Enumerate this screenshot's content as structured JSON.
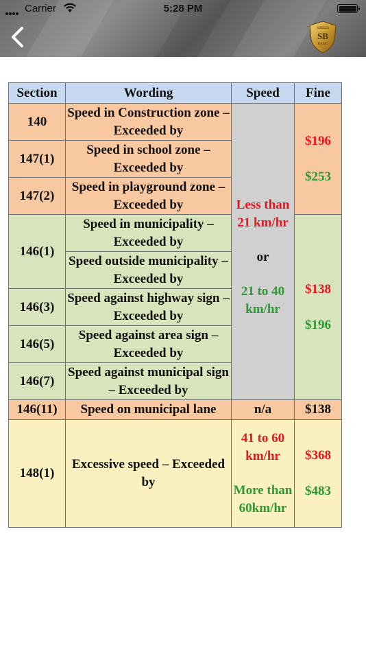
{
  "status_bar": {
    "carrier": "Carrier",
    "time": "5:28 PM"
  },
  "header": {
    "back_icon": "chevron-left-icon",
    "logo": {
      "top": "SHIELD",
      "mid": "SB",
      "bottom": "BASIC"
    }
  },
  "colors": {
    "header_bg": "#707070",
    "th_bg": "#c6d9f1",
    "orange": "#f8c8a0",
    "green": "#d8e4bc",
    "yellow": "#faf0c0",
    "grey": "#d0d0d0",
    "red_text": "#e8141e",
    "green_text": "#2a9a32"
  },
  "table": {
    "headers": [
      "Section",
      "Wording",
      "Speed",
      "Fine"
    ],
    "rows": [
      {
        "section": "140",
        "wording": "Speed in Construction zone – Exceeded by"
      },
      {
        "section": "147(1)",
        "wording": "Speed in school zone – Exceeded by"
      },
      {
        "section": "147(2)",
        "wording": "Speed in playground zone – Exceeded by"
      },
      {
        "section": "146(1)",
        "wording": "Speed in municipality – Exceeded by"
      },
      {
        "wording": "Speed outside municipality – Exceeded by"
      },
      {
        "section": "146(3)",
        "wording": "Speed against highway sign – Exceeded by"
      },
      {
        "section": "146(5)",
        "wording": "Speed against area sign – Exceeded by"
      },
      {
        "section": "146(7)",
        "wording": "Speed against municipal sign – Exceeded by"
      },
      {
        "section": "146(11)",
        "wording": "Speed on municipal lane",
        "speed": "n/a",
        "fine": "$138"
      },
      {
        "section": "148(1)",
        "wording": "Excessive speed – Exceeded by"
      }
    ],
    "speed_block": {
      "low": "Less than 21 km/hr",
      "or": "or",
      "high": "21 to 40 km/hr"
    },
    "fines_orange": {
      "low": "$196",
      "high": "$253"
    },
    "fines_green": {
      "low": "$138",
      "high": "$196"
    },
    "excessive": {
      "speed_low": "41 to 60 km/hr",
      "speed_high": "More than 60km/hr",
      "fine_low": "$368",
      "fine_high": "$483"
    }
  }
}
